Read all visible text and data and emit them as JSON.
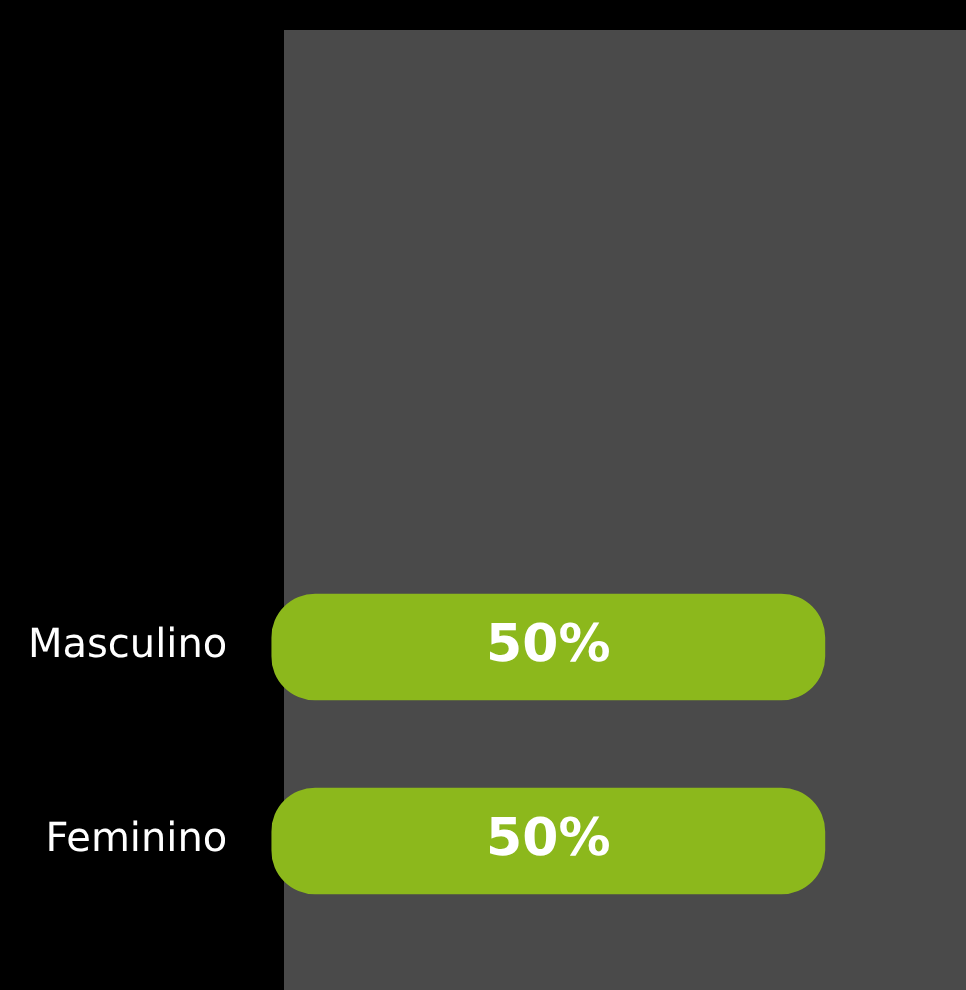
{
  "chart_data": {
    "type": "bar",
    "orientation": "horizontal",
    "categories": [
      "Masculino",
      "Feminino"
    ],
    "values": [
      50,
      50
    ],
    "color": "#8cb81c",
    "value_labels": [
      "50%",
      "50%"
    ],
    "tick_labels": "y",
    "legend": false
  }
}
